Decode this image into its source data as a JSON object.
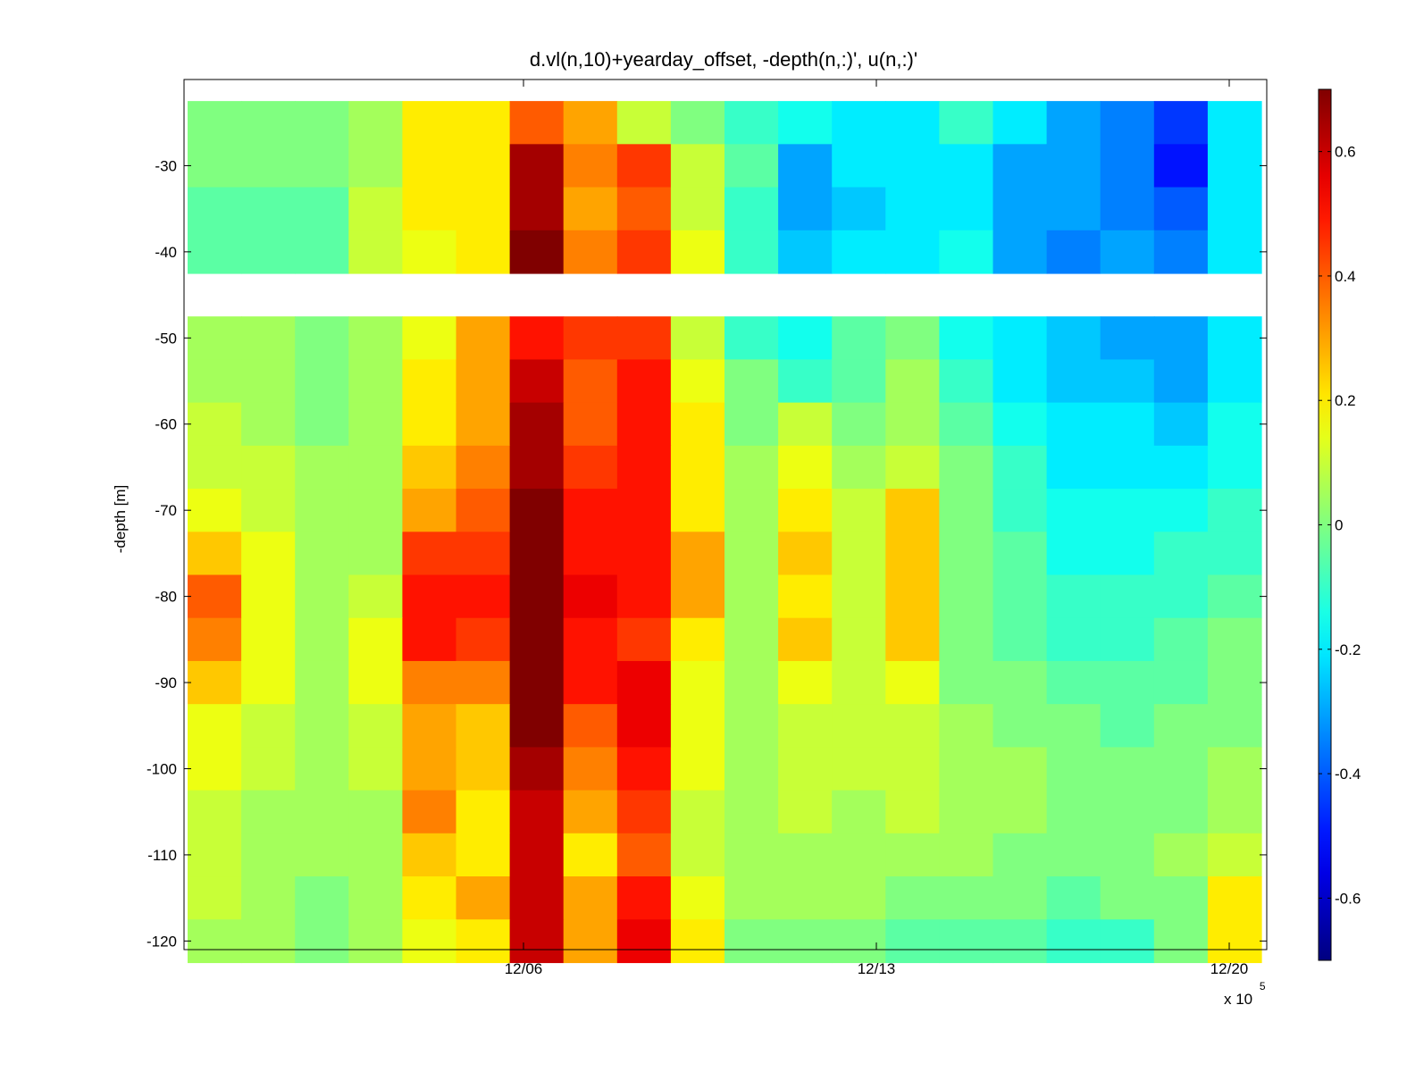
{
  "chart_data": {
    "type": "heatmap",
    "title": "d.vl(n,10)+yearday_offset, -depth(n,:)', u(n,:)'",
    "xlabel": "",
    "ylabel": "-depth [m]",
    "x_exponent_label": "x 10",
    "x_exponent": "5",
    "x_ticks": [
      "12/06",
      "12/13",
      "12/20"
    ],
    "y_ticks": [
      -30,
      -40,
      -50,
      -60,
      -70,
      -80,
      -90,
      -100,
      -110,
      -120
    ],
    "ylim": [
      -121,
      -20
    ],
    "colormap": "jet",
    "clim": [
      -0.7,
      0.7
    ],
    "colorbar_ticks": [
      0.6,
      0.4,
      0.2,
      0,
      -0.2,
      -0.4,
      -0.6
    ],
    "colorbar_labels": [
      "0.6",
      "0.4",
      "0.2",
      "0",
      "-0.2",
      "-0.4",
      "-0.6"
    ],
    "depth_bins": [
      -25,
      -30,
      -35,
      -40,
      -45,
      -50,
      -55,
      -60,
      -65,
      -70,
      -75,
      -80,
      -85,
      -90,
      -95,
      -100,
      -105,
      -110,
      -115,
      -120
    ],
    "empty_depth_bins": [
      -45
    ],
    "day_columns": [
      "12/01",
      "12/02",
      "12/03",
      "12/04",
      "12/05",
      "12/06",
      "12/07",
      "12/08",
      "12/09",
      "12/10",
      "12/11",
      "12/12",
      "12/13",
      "12/14",
      "12/15",
      "12/16",
      "12/17",
      "12/18",
      "12/19",
      "12/20"
    ],
    "u_values_by_depth": [
      [
        0.0,
        0.0,
        0.0,
        0.05,
        0.2,
        0.2,
        0.4,
        0.3,
        0.1,
        0.0,
        -0.1,
        -0.15,
        -0.2,
        -0.2,
        -0.1,
        -0.2,
        -0.3,
        -0.35,
        -0.45,
        -0.2
      ],
      [
        0.0,
        0.0,
        0.0,
        0.05,
        0.2,
        0.2,
        0.65,
        0.35,
        0.45,
        0.1,
        -0.05,
        -0.3,
        -0.2,
        -0.2,
        -0.2,
        -0.3,
        -0.3,
        -0.35,
        -0.5,
        -0.2
      ],
      [
        -0.05,
        -0.05,
        -0.05,
        0.1,
        0.2,
        0.2,
        0.65,
        0.3,
        0.4,
        0.1,
        -0.1,
        -0.3,
        -0.25,
        -0.2,
        -0.2,
        -0.3,
        -0.3,
        -0.35,
        -0.4,
        -0.2
      ],
      [
        -0.05,
        -0.05,
        -0.05,
        0.1,
        0.15,
        0.2,
        0.7,
        0.35,
        0.45,
        0.15,
        -0.1,
        -0.25,
        -0.2,
        -0.2,
        -0.15,
        -0.3,
        -0.35,
        -0.3,
        -0.35,
        -0.2
      ],
      [
        null,
        null,
        null,
        null,
        null,
        null,
        null,
        null,
        null,
        null,
        null,
        null,
        null,
        null,
        null,
        null,
        null,
        null,
        null,
        null
      ],
      [
        0.05,
        0.05,
        0.0,
        0.05,
        0.15,
        0.3,
        0.5,
        0.45,
        0.45,
        0.1,
        -0.1,
        -0.15,
        -0.05,
        0.0,
        -0.15,
        -0.2,
        -0.25,
        -0.3,
        -0.3,
        -0.2
      ],
      [
        0.05,
        0.05,
        0.0,
        0.05,
        0.2,
        0.3,
        0.6,
        0.4,
        0.5,
        0.15,
        0.0,
        -0.1,
        -0.05,
        0.05,
        -0.1,
        -0.2,
        -0.25,
        -0.25,
        -0.3,
        -0.2
      ],
      [
        0.1,
        0.05,
        0.0,
        0.05,
        0.2,
        0.3,
        0.65,
        0.4,
        0.5,
        0.2,
        0.0,
        0.1,
        0.0,
        0.05,
        -0.05,
        -0.15,
        -0.2,
        -0.2,
        -0.25,
        -0.15
      ],
      [
        0.1,
        0.1,
        0.05,
        0.05,
        0.25,
        0.35,
        0.65,
        0.45,
        0.5,
        0.2,
        0.05,
        0.15,
        0.05,
        0.1,
        0.0,
        -0.1,
        -0.2,
        -0.2,
        -0.2,
        -0.15
      ],
      [
        0.15,
        0.1,
        0.05,
        0.05,
        0.3,
        0.4,
        0.7,
        0.5,
        0.5,
        0.2,
        0.05,
        0.2,
        0.1,
        0.25,
        0.0,
        -0.1,
        -0.15,
        -0.15,
        -0.15,
        -0.1
      ],
      [
        0.25,
        0.15,
        0.05,
        0.05,
        0.45,
        0.45,
        0.7,
        0.5,
        0.5,
        0.3,
        0.05,
        0.25,
        0.1,
        0.25,
        0.0,
        -0.05,
        -0.15,
        -0.15,
        -0.1,
        -0.1
      ],
      [
        0.4,
        0.15,
        0.05,
        0.1,
        0.5,
        0.5,
        0.7,
        0.55,
        0.5,
        0.3,
        0.05,
        0.2,
        0.1,
        0.25,
        0.0,
        -0.05,
        -0.1,
        -0.1,
        -0.1,
        -0.05
      ],
      [
        0.35,
        0.15,
        0.05,
        0.15,
        0.5,
        0.45,
        0.7,
        0.5,
        0.45,
        0.2,
        0.05,
        0.25,
        0.1,
        0.25,
        0.0,
        -0.05,
        -0.1,
        -0.1,
        -0.05,
        0.0
      ],
      [
        0.25,
        0.15,
        0.05,
        0.15,
        0.35,
        0.35,
        0.7,
        0.5,
        0.55,
        0.15,
        0.05,
        0.15,
        0.1,
        0.15,
        0.0,
        0.0,
        -0.05,
        -0.05,
        -0.05,
        0.0
      ],
      [
        0.15,
        0.1,
        0.05,
        0.1,
        0.3,
        0.25,
        0.7,
        0.4,
        0.55,
        0.15,
        0.05,
        0.1,
        0.1,
        0.1,
        0.05,
        0.0,
        0.0,
        -0.05,
        0.0,
        0.0
      ],
      [
        0.15,
        0.1,
        0.05,
        0.1,
        0.3,
        0.25,
        0.65,
        0.35,
        0.5,
        0.15,
        0.05,
        0.1,
        0.1,
        0.1,
        0.05,
        0.05,
        0.0,
        0.0,
        0.0,
        0.05
      ],
      [
        0.1,
        0.05,
        0.05,
        0.05,
        0.35,
        0.2,
        0.6,
        0.3,
        0.45,
        0.1,
        0.05,
        0.1,
        0.05,
        0.1,
        0.05,
        0.05,
        0.0,
        0.0,
        0.0,
        0.05
      ],
      [
        0.1,
        0.05,
        0.05,
        0.05,
        0.25,
        0.2,
        0.6,
        0.2,
        0.4,
        0.1,
        0.05,
        0.05,
        0.05,
        0.05,
        0.05,
        0.0,
        0.0,
        0.0,
        0.05,
        0.1
      ],
      [
        0.1,
        0.05,
        0.0,
        0.05,
        0.2,
        0.3,
        0.6,
        0.3,
        0.5,
        0.15,
        0.05,
        0.05,
        0.05,
        0.0,
        0.0,
        0.0,
        -0.05,
        0.0,
        0.0,
        0.2
      ],
      [
        0.05,
        0.05,
        0.0,
        0.05,
        0.15,
        0.2,
        0.6,
        0.3,
        0.55,
        0.2,
        0.0,
        0.0,
        0.0,
        -0.05,
        -0.05,
        -0.05,
        -0.1,
        -0.1,
        0.0,
        0.2
      ]
    ]
  }
}
